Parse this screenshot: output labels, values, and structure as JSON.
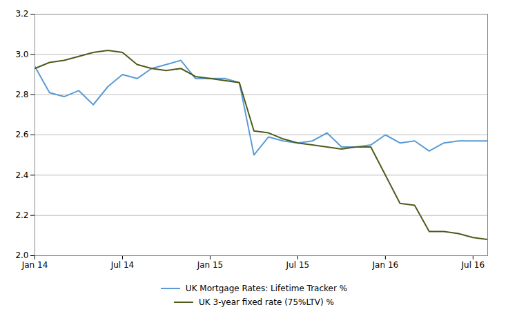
{
  "chart_data": {
    "type": "line",
    "x": [
      0,
      1,
      2,
      3,
      4,
      5,
      6,
      7,
      8,
      9,
      10,
      11,
      12,
      13,
      14,
      15,
      16,
      17,
      18,
      19,
      20,
      21,
      22,
      23,
      24,
      25,
      26,
      27,
      28,
      29,
      30,
      31
    ],
    "series": [
      {
        "name": "UK Mortgage Rates: Lifetime Tracker %",
        "color": "#5B9BD5",
        "values": [
          2.94,
          2.81,
          2.79,
          2.82,
          2.75,
          2.84,
          2.9,
          2.88,
          2.93,
          2.95,
          2.97,
          2.88,
          2.88,
          2.88,
          2.86,
          2.5,
          2.59,
          2.57,
          2.56,
          2.57,
          2.61,
          2.54,
          2.54,
          2.55,
          2.6,
          2.56,
          2.57,
          2.52,
          2.56,
          2.57,
          2.57,
          2.57
        ]
      },
      {
        "name": "UK 3-year fixed rate (75%LTV) %",
        "color": "#4D5B1B",
        "values": [
          2.93,
          2.96,
          2.97,
          2.99,
          3.01,
          3.02,
          3.01,
          2.95,
          2.93,
          2.92,
          2.93,
          2.89,
          2.88,
          2.87,
          2.86,
          2.62,
          2.61,
          2.58,
          2.56,
          2.55,
          2.54,
          2.53,
          2.54,
          2.54,
          2.4,
          2.26,
          2.25,
          2.12,
          2.12,
          2.11,
          2.09,
          2.08
        ]
      }
    ],
    "xlim": [
      0,
      31
    ],
    "ylim": [
      2.0,
      3.2
    ],
    "xticks": [
      {
        "value": 0,
        "label": "Jan 14"
      },
      {
        "value": 6,
        "label": "Jul 14"
      },
      {
        "value": 12,
        "label": "Jan 15"
      },
      {
        "value": 18,
        "label": "Jul 15"
      },
      {
        "value": 24,
        "label": "Jan 16"
      },
      {
        "value": 30,
        "label": "Jul 16"
      }
    ],
    "yticks": [
      {
        "value": 2.0,
        "label": "2.0"
      },
      2.2,
      2.4,
      2.6,
      2.8,
      {
        "value": 3.0,
        "label": "3.0"
      },
      3.2
    ],
    "grid": true,
    "legend": "bottom"
  }
}
